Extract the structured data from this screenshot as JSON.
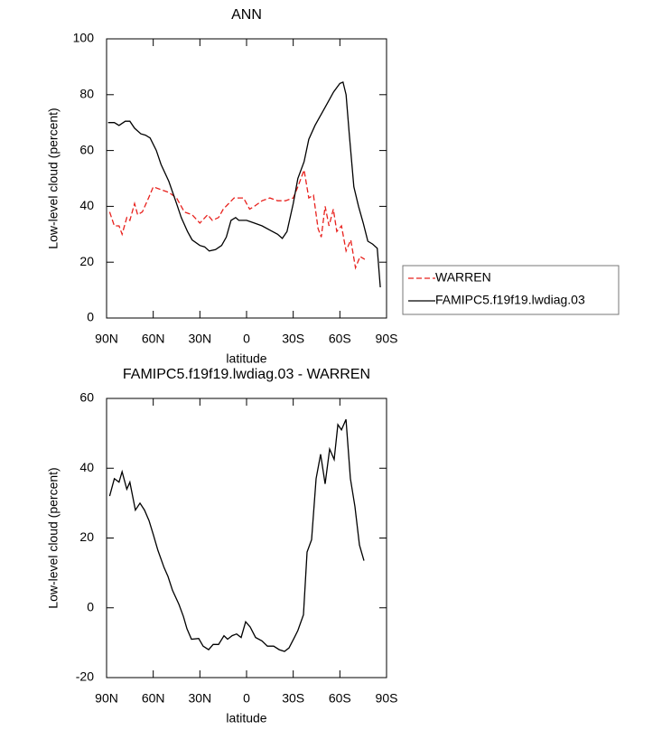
{
  "chart_data": [
    {
      "type": "line",
      "title": "ANN",
      "x_label": "latitude",
      "y_label": "Low-level cloud (percent)",
      "xlim": [
        90,
        -90
      ],
      "xticks": [
        {
          "value": 90,
          "label": "90N"
        },
        {
          "value": 60,
          "label": "60N"
        },
        {
          "value": 30,
          "label": "30N"
        },
        0,
        {
          "value": -30,
          "label": "30S"
        },
        {
          "value": -60,
          "label": "60S"
        },
        {
          "value": -90,
          "label": "90S"
        }
      ],
      "ylim": [
        0,
        100
      ],
      "yticks": [
        0,
        20,
        40,
        60,
        80,
        100
      ],
      "legend": "right",
      "series": [
        {
          "name": "WARREN",
          "color": "#e8201c",
          "dash": true,
          "x": [
            88,
            85,
            82,
            80,
            77,
            75,
            72,
            70,
            67,
            63,
            60,
            55,
            50,
            45,
            40,
            35,
            30,
            25,
            22,
            18,
            15,
            8,
            2,
            -2,
            -5,
            -10,
            -15,
            -20,
            -25,
            -30,
            -33,
            -37,
            -40,
            -43,
            -46,
            -48,
            -50.5,
            -53,
            -55.8,
            -58,
            -61,
            -64,
            -67,
            -70,
            -73,
            -76
          ],
          "values": [
            38,
            33,
            33,
            30,
            36,
            35,
            41,
            37,
            38,
            43,
            47,
            46,
            45,
            43,
            38,
            37,
            34,
            37,
            35,
            36,
            39,
            43,
            43,
            39,
            40,
            42,
            43,
            42,
            42,
            43,
            47,
            53,
            43,
            44,
            32,
            29,
            40,
            33,
            39,
            31,
            33,
            24,
            28,
            18,
            22,
            21
          ]
        },
        {
          "name": "FAMIPC5.f19f19.lwdiag.03",
          "color": "#000000",
          "dash": false,
          "x": [
            89,
            85,
            82,
            78,
            75,
            72,
            68,
            65,
            62,
            58,
            55,
            50,
            45,
            42,
            38,
            35,
            30,
            27,
            24,
            20,
            16,
            13,
            10,
            7,
            5,
            0,
            -5,
            -10,
            -15,
            -20,
            -23,
            -26,
            -30,
            -33,
            -37,
            -40,
            -44,
            -48,
            -52,
            -56,
            -60,
            -62,
            -64,
            -66,
            -69,
            -72,
            -75,
            -78,
            -81,
            -84,
            -86
          ],
          "values": [
            70,
            70,
            69,
            70.5,
            70.5,
            68,
            66,
            65.5,
            64.5,
            60,
            55,
            49,
            41,
            36,
            31,
            28,
            26,
            25.5,
            24,
            24.5,
            26,
            29,
            35,
            36,
            35,
            35,
            34,
            33,
            31.5,
            30,
            28.5,
            31,
            41,
            50,
            56,
            64,
            69,
            73,
            77,
            81,
            84,
            84.5,
            80,
            66,
            47,
            40,
            34,
            27.5,
            26.5,
            25,
            11
          ]
        }
      ]
    },
    {
      "type": "line",
      "title": "FAMIPC5.f19f19.lwdiag.03 - WARREN",
      "x_label": "latitude",
      "y_label": "Low-level cloud (percent)",
      "xlim": [
        90,
        -90
      ],
      "xticks": [
        {
          "value": 90,
          "label": "90N"
        },
        {
          "value": 60,
          "label": "60N"
        },
        {
          "value": 30,
          "label": "30N"
        },
        0,
        {
          "value": -30,
          "label": "30S"
        },
        {
          "value": -60,
          "label": "60S"
        },
        {
          "value": -90,
          "label": "90S"
        }
      ],
      "ylim": [
        -20,
        60
      ],
      "yticks": [
        -20,
        0,
        20,
        40,
        60
      ],
      "series": [
        {
          "color": "#000000",
          "dash": false,
          "x": [
            88,
            85,
            82,
            80,
            77,
            75,
            71.5,
            68.5,
            65.6,
            62.7,
            60,
            57,
            53,
            50.5,
            47.6,
            43.5,
            40.6,
            38.3,
            35.4,
            30.8,
            27.9,
            24.4,
            21.5,
            18,
            14.5,
            12.2,
            9.3,
            6.4,
            3.5,
            0.6,
            -2.3,
            -5.8,
            -9.9,
            -13.4,
            -17.4,
            -21,
            -24.4,
            -27.3,
            -30.8,
            -33,
            -36.6,
            -38.9,
            -41.8,
            -44.7,
            -47.6,
            -50.5,
            -53.4,
            -56.3,
            -58.7,
            -61,
            -63.9,
            -66.8,
            -69.7,
            -72.6,
            -75.5
          ],
          "values": [
            32,
            37,
            36,
            39,
            34,
            36,
            28,
            30,
            28,
            25,
            21,
            16.5,
            11.5,
            9,
            5,
            1,
            -2.5,
            -6,
            -9,
            -8.8,
            -11,
            -12,
            -10.5,
            -10.5,
            -8,
            -9,
            -8,
            -7.5,
            -8.5,
            -4,
            -5.5,
            -8.5,
            -9.5,
            -11,
            -11,
            -12,
            -12.5,
            -11.5,
            -8.5,
            -6.5,
            -2,
            16,
            19.5,
            37,
            44,
            35.5,
            45.5,
            42.5,
            52.5,
            51,
            54,
            37,
            29,
            18,
            13.5
          ]
        }
      ]
    }
  ]
}
